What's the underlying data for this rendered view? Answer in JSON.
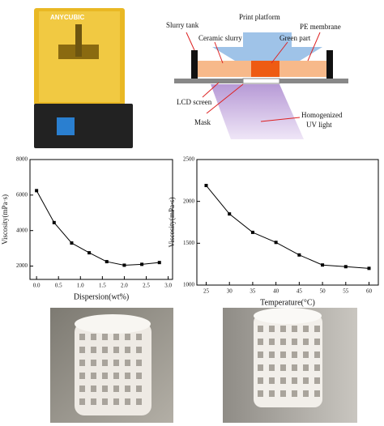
{
  "photo": {
    "brand": "ANYCUBIC"
  },
  "diagram": {
    "labels": [
      "Slurry tank",
      "Print platform",
      "PE membrane",
      "Ceramic slurry",
      "Green part",
      "LCD screen",
      "Mask",
      "Homogenized",
      "UV light"
    ]
  },
  "chart_data": [
    {
      "type": "line",
      "x": [
        0,
        0.4,
        0.8,
        1.2,
        1.6,
        2.0,
        2.4,
        2.8
      ],
      "values": [
        6250,
        4450,
        3300,
        2750,
        2250,
        2050,
        2100,
        2200
      ],
      "color": "#000000",
      "xlabel": "Dispersion(wt%)",
      "ylabel": "Viscosity(mPa·s)",
      "xlim": [
        -0.15,
        3.1
      ],
      "ylim": [
        1250,
        8000
      ],
      "xticks": [
        {
          "value": 0,
          "label": "0.0"
        },
        {
          "value": 0.5,
          "label": "0.5"
        },
        {
          "value": 1,
          "label": "1.0"
        },
        {
          "value": 1.5,
          "label": "1.5"
        },
        {
          "value": 2,
          "label": "2.0"
        },
        {
          "value": 2.5,
          "label": "2.5"
        },
        {
          "value": 3,
          "label": "3.0"
        }
      ],
      "yticks": [
        2000,
        4000,
        6000,
        8000
      ]
    },
    {
      "type": "line",
      "x": [
        25,
        30,
        35,
        40,
        45,
        50,
        55,
        60
      ],
      "values": [
        2190,
        1850,
        1630,
        1510,
        1360,
        1240,
        1220,
        1200
      ],
      "color": "#000000",
      "xlabel": "Temperature(°C)",
      "ylabel": "Viscosity(mPa·s)",
      "xlim": [
        23,
        62
      ],
      "ylim": [
        1000,
        2500
      ],
      "xticks": [
        25,
        30,
        35,
        40,
        45,
        50,
        55,
        60
      ],
      "yticks": [
        1000,
        1500,
        2000,
        2500
      ]
    }
  ]
}
